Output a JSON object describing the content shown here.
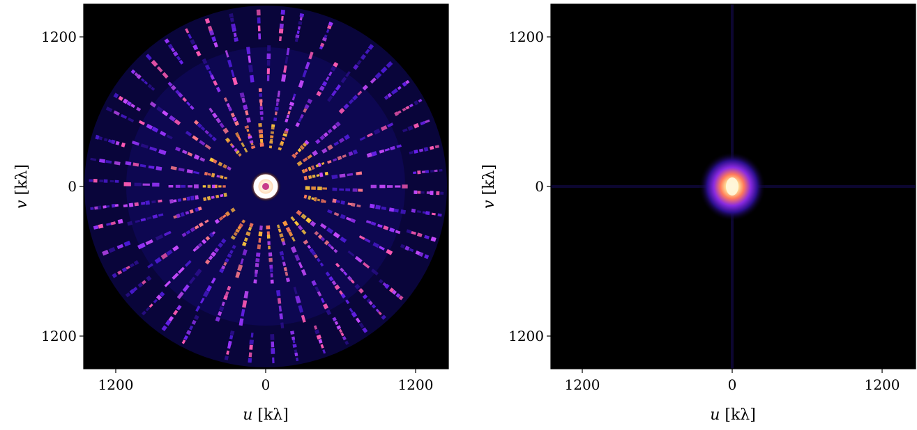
{
  "chart_data": [
    {
      "type": "heatmap",
      "title": "",
      "xlabel": {
        "var": "u",
        "unit": "[kλ]"
      },
      "ylabel": {
        "var": "v",
        "unit": "[kλ]"
      },
      "xlim": [
        -1200,
        1200
      ],
      "ylim": [
        -1200,
        1200
      ],
      "x_ticks": [
        {
          "value": -1200,
          "label": "1200"
        },
        {
          "value": 0,
          "label": "0"
        },
        {
          "value": 1200,
          "label": "1200"
        }
      ],
      "y_ticks": [
        {
          "value": 1200,
          "label": "1200"
        },
        {
          "value": 0,
          "label": "0"
        },
        {
          "value": -1200,
          "label": "1200"
        }
      ],
      "grid": false,
      "colormap": [
        "#000000",
        "#1a0a6e",
        "#5a1ef0",
        "#b43cff",
        "#ff5ab4",
        "#ffb43c",
        "#fff0b4",
        "#ffffff"
      ],
      "description_pattern": "uv-coverage: concentric arcs of tracks with bright core ring"
    },
    {
      "type": "heatmap",
      "title": "",
      "xlabel": {
        "var": "u",
        "unit": "[kλ]"
      },
      "ylabel": {
        "var": "v",
        "unit": "[kλ]"
      },
      "xlim": [
        -1200,
        1200
      ],
      "ylim": [
        -1200,
        1200
      ],
      "x_ticks": [
        {
          "value": -1200,
          "label": "1200"
        },
        {
          "value": 0,
          "label": "0"
        },
        {
          "value": 1200,
          "label": "1200"
        }
      ],
      "y_ticks": [
        {
          "value": 1200,
          "label": "1200"
        },
        {
          "value": 0,
          "label": "0"
        },
        {
          "value": -1200,
          "label": "1200"
        }
      ],
      "grid": false,
      "colormap": [
        "#000000",
        "#1a0a6e",
        "#5a1ef0",
        "#b43cff",
        "#ff5ab4",
        "#ffb43c",
        "#fff0b4",
        "#ffffff"
      ],
      "description_pattern": "compact bright blob at origin"
    }
  ]
}
